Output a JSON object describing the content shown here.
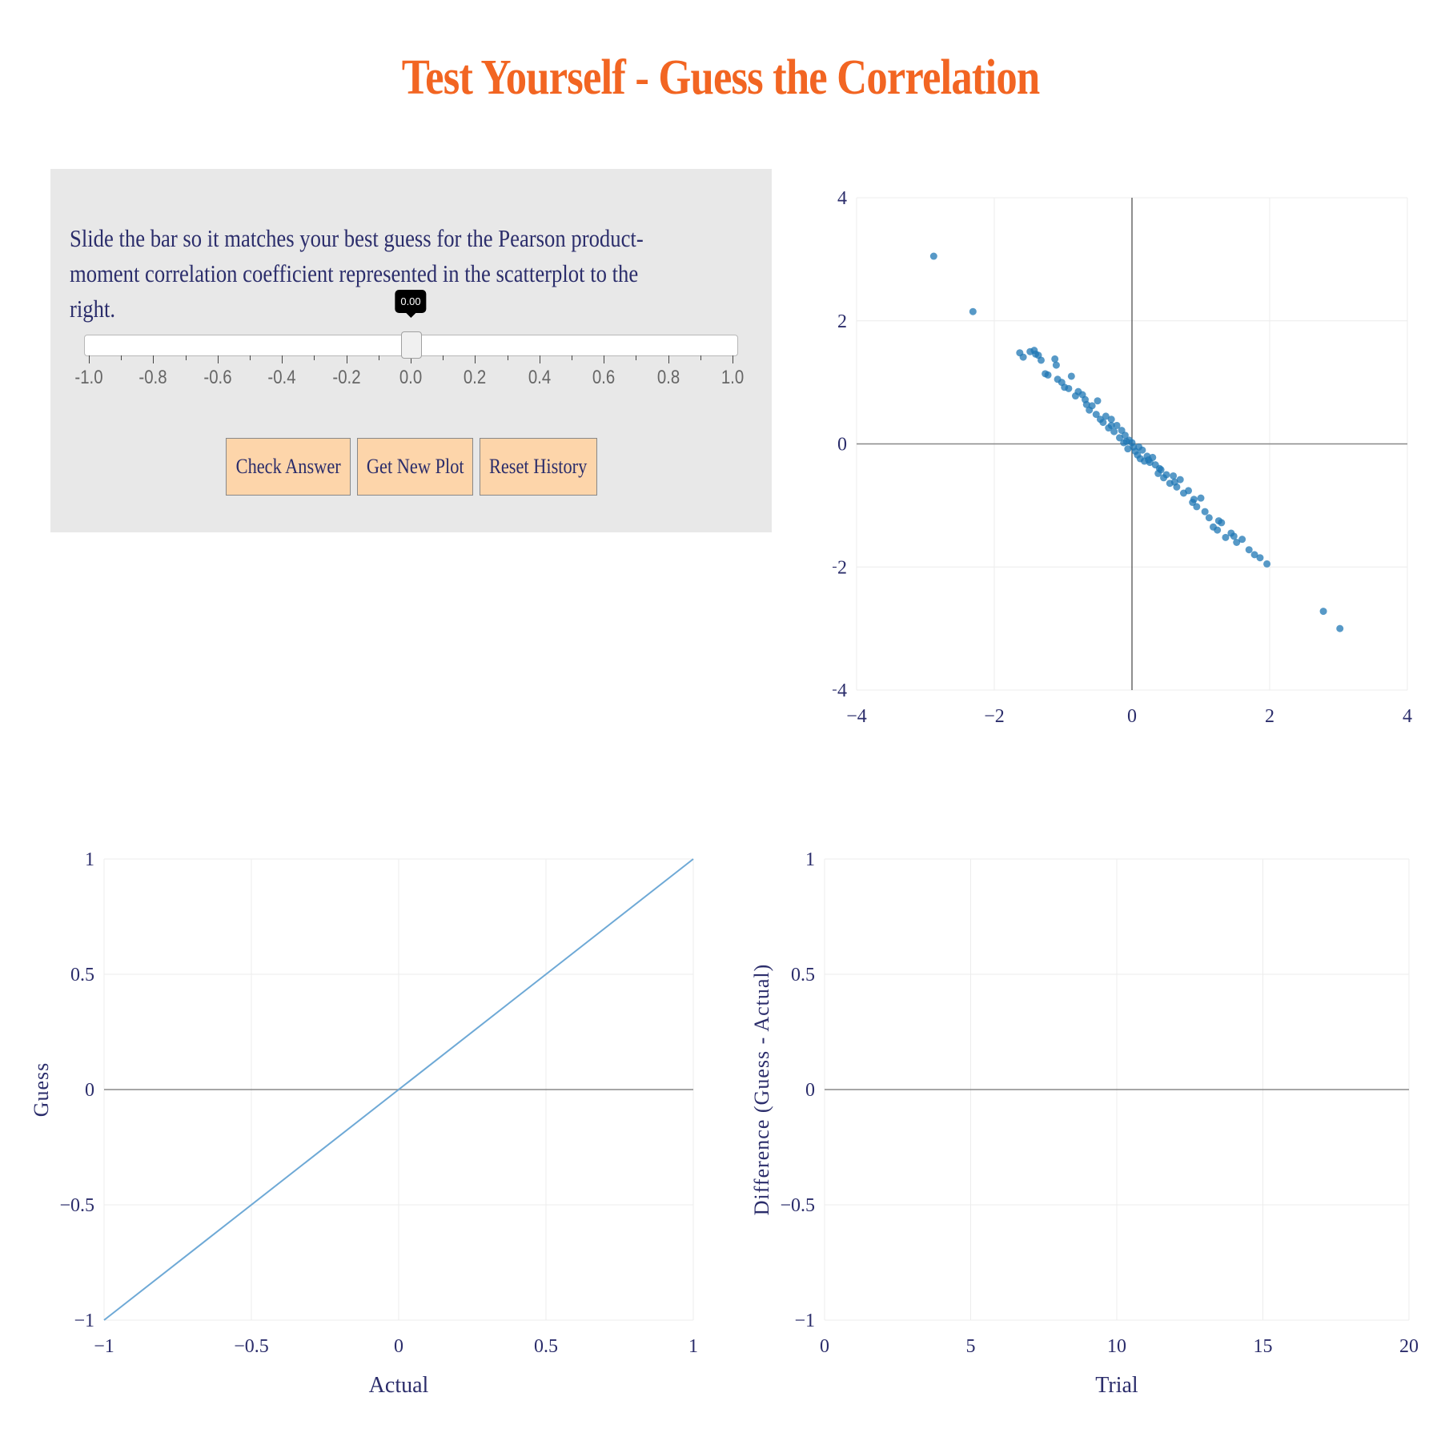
{
  "title": "Test Yourself - Guess the Correlation",
  "instructions": "Slide the bar so it matches your best guess for the Pearson product-moment correlation coefficient represented in the scatterplot to the right.",
  "slider": {
    "value": 0.0,
    "value_label": "0.00",
    "min": -1.0,
    "max": 1.0,
    "tick_labels": [
      "-1.0",
      "-0.8",
      "-0.6",
      "-0.4",
      "-0.2",
      "0.0",
      "0.2",
      "0.4",
      "0.6",
      "0.8",
      "1.0"
    ]
  },
  "buttons": {
    "check": "Check Answer",
    "new_plot": "Get New Plot",
    "reset": "Reset History"
  },
  "colors": {
    "title": "#f26522",
    "text": "#2b2d6b",
    "panel": "#e8e8e8",
    "button": "#fdd5aa",
    "point": "#1f77b4",
    "line": "#6ea9d6"
  },
  "chart_data": [
    {
      "type": "scatter",
      "xlabel": "",
      "ylabel": "",
      "xlim": [
        -4,
        4
      ],
      "ylim": [
        -4,
        4
      ],
      "xticks": [
        -4,
        -2,
        0,
        2,
        4
      ],
      "yticks": [
        -4,
        -2,
        0,
        2,
        4
      ],
      "tick_labels_x": [
        "−4",
        "−2",
        "0",
        "2",
        "4"
      ],
      "tick_labels_y": [
        "−4",
        "−2",
        "0",
        "2",
        "4"
      ],
      "grid": true,
      "points": [
        [
          -2.88,
          3.05
        ],
        [
          -2.31,
          2.15
        ],
        [
          -1.63,
          1.48
        ],
        [
          -1.58,
          1.41
        ],
        [
          -1.48,
          1.5
        ],
        [
          -1.42,
          1.52
        ],
        [
          -1.36,
          1.44
        ],
        [
          -1.32,
          1.36
        ],
        [
          -1.26,
          1.14
        ],
        [
          -1.22,
          1.12
        ],
        [
          -1.12,
          1.38
        ],
        [
          -1.1,
          1.28
        ],
        [
          -1.08,
          1.05
        ],
        [
          -0.98,
          0.92
        ],
        [
          -0.92,
          0.9
        ],
        [
          -0.88,
          1.1
        ],
        [
          -0.82,
          0.78
        ],
        [
          -0.78,
          0.85
        ],
        [
          -0.72,
          0.8
        ],
        [
          -0.68,
          0.72
        ],
        [
          -0.62,
          0.55
        ],
        [
          -0.58,
          0.62
        ],
        [
          -0.52,
          0.48
        ],
        [
          -0.5,
          0.7
        ],
        [
          -0.46,
          0.4
        ],
        [
          -0.42,
          0.35
        ],
        [
          -0.38,
          0.45
        ],
        [
          -0.34,
          0.26
        ],
        [
          -0.3,
          0.4
        ],
        [
          -0.26,
          0.2
        ],
        [
          -0.22,
          0.3
        ],
        [
          -0.18,
          0.1
        ],
        [
          -0.15,
          0.22
        ],
        [
          -0.12,
          0.02
        ],
        [
          -0.1,
          0.14
        ],
        [
          -0.06,
          -0.08
        ],
        [
          -0.04,
          0.06
        ],
        [
          0.0,
          0.02
        ],
        [
          0.02,
          -0.05
        ],
        [
          0.05,
          -0.12
        ],
        [
          0.08,
          -0.18
        ],
        [
          0.1,
          -0.05
        ],
        [
          0.12,
          -0.24
        ],
        [
          0.15,
          -0.1
        ],
        [
          0.18,
          -0.28
        ],
        [
          0.22,
          -0.2
        ],
        [
          0.26,
          -0.3
        ],
        [
          0.3,
          -0.22
        ],
        [
          0.34,
          -0.34
        ],
        [
          0.38,
          -0.48
        ],
        [
          0.42,
          -0.42
        ],
        [
          0.46,
          -0.55
        ],
        [
          0.5,
          -0.5
        ],
        [
          0.55,
          -0.64
        ],
        [
          0.6,
          -0.52
        ],
        [
          0.65,
          -0.7
        ],
        [
          0.7,
          -0.58
        ],
        [
          0.75,
          -0.8
        ],
        [
          0.82,
          -0.76
        ],
        [
          0.88,
          -0.95
        ],
        [
          0.94,
          -1.02
        ],
        [
          1.0,
          -0.88
        ],
        [
          1.06,
          -1.1
        ],
        [
          1.12,
          -1.2
        ],
        [
          1.18,
          -1.35
        ],
        [
          1.24,
          -1.4
        ],
        [
          1.3,
          -1.28
        ],
        [
          1.36,
          -1.52
        ],
        [
          1.44,
          -1.45
        ],
        [
          1.52,
          -1.6
        ],
        [
          1.6,
          -1.55
        ],
        [
          1.7,
          -1.72
        ],
        [
          1.78,
          -1.8
        ],
        [
          1.86,
          -1.85
        ],
        [
          1.96,
          -1.95
        ],
        [
          2.78,
          -2.72
        ],
        [
          3.02,
          -3.0
        ],
        [
          -1.4,
          1.46
        ],
        [
          -1.02,
          1.0
        ],
        [
          -0.66,
          0.64
        ],
        [
          -0.3,
          0.3
        ],
        [
          -0.08,
          0.04
        ],
        [
          0.24,
          -0.26
        ],
        [
          0.4,
          -0.4
        ],
        [
          0.62,
          -0.62
        ],
        [
          0.9,
          -0.9
        ],
        [
          1.26,
          -1.25
        ],
        [
          1.48,
          -1.5
        ]
      ]
    },
    {
      "type": "line",
      "xlabel": "Actual",
      "ylabel": "Guess",
      "xlim": [
        -1,
        1
      ],
      "ylim": [
        -1,
        1
      ],
      "xticks": [
        -1,
        -0.5,
        0,
        0.5,
        1
      ],
      "yticks": [
        -1,
        -0.5,
        0,
        0.5,
        1
      ],
      "tick_labels_x": [
        "−1",
        "−0.5",
        "0",
        "0.5",
        "1"
      ],
      "tick_labels_y": [
        "−1",
        "−0.5",
        "0",
        "0.5",
        "1"
      ],
      "grid": true,
      "x": [
        -1,
        1
      ],
      "y": [
        -1,
        1
      ]
    },
    {
      "type": "line",
      "xlabel": "Trial",
      "ylabel": "Difference (Guess - Actual)",
      "xlim": [
        0,
        20
      ],
      "ylim": [
        -1,
        1
      ],
      "xticks": [
        0,
        5,
        10,
        15,
        20
      ],
      "yticks": [
        -1,
        -0.5,
        0,
        0.5,
        1
      ],
      "tick_labels_x": [
        "0",
        "5",
        "10",
        "15",
        "20"
      ],
      "tick_labels_y": [
        "−1",
        "−0.5",
        "0",
        "0.5",
        "1"
      ],
      "grid": true,
      "x": [],
      "y": []
    }
  ]
}
